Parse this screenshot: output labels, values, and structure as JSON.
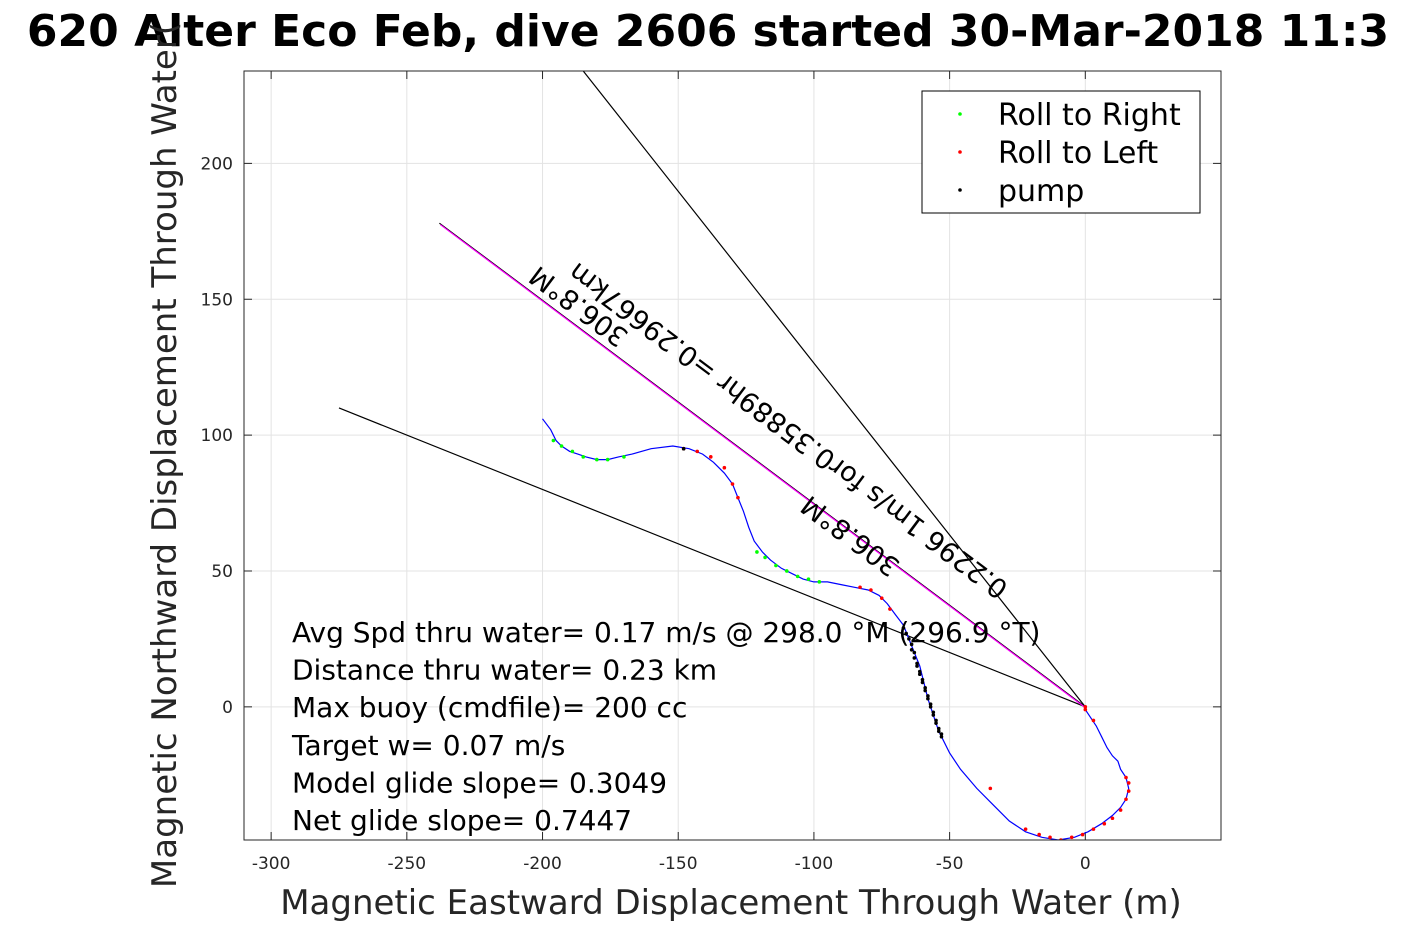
{
  "chart_data": {
    "type": "line",
    "title": "620 Alter Eco Feb, dive 2606 started 30-Mar-2018 11:3",
    "xlabel": "Magnetic Eastward Displacement Through Water (m)",
    "ylabel": "Magnetic Northward Displacement Through Water(",
    "xlim": [
      -310,
      50
    ],
    "ylim": [
      -49,
      234
    ],
    "xticks": [
      -300,
      -250,
      -200,
      -150,
      -100,
      -50,
      0
    ],
    "yticks": [
      0,
      50,
      100,
      150,
      200
    ],
    "grid": true,
    "legend_position": "top-right",
    "legend": [
      {
        "label": "Roll to Right",
        "color": "#00ff00"
      },
      {
        "label": "Roll to Left",
        "color": "#ff0000"
      },
      {
        "label": "pump",
        "color": "#000000"
      }
    ],
    "track": {
      "color": "#0000ff",
      "points": [
        [
          -200,
          106
        ],
        [
          -197,
          102
        ],
        [
          -195,
          98
        ],
        [
          -193,
          96
        ],
        [
          -190,
          94
        ],
        [
          -187,
          93
        ],
        [
          -184,
          92
        ],
        [
          -180,
          91
        ],
        [
          -176,
          91
        ],
        [
          -172,
          92
        ],
        [
          -167,
          93
        ],
        [
          -160,
          95
        ],
        [
          -152,
          96
        ],
        [
          -146,
          95
        ],
        [
          -141,
          93
        ],
        [
          -137,
          90
        ],
        [
          -133,
          86
        ],
        [
          -130,
          82
        ],
        [
          -128,
          77
        ],
        [
          -126,
          72
        ],
        [
          -124,
          66
        ],
        [
          -122,
          61
        ],
        [
          -119,
          57
        ],
        [
          -116,
          54
        ],
        [
          -112,
          51
        ],
        [
          -108,
          49
        ],
        [
          -104,
          47
        ],
        [
          -100,
          46
        ],
        [
          -95,
          46
        ],
        [
          -90,
          45
        ],
        [
          -85,
          44
        ],
        [
          -80,
          43
        ],
        [
          -76,
          41
        ],
        [
          -73,
          38
        ],
        [
          -70,
          34
        ],
        [
          -67,
          30
        ],
        [
          -65,
          25
        ],
        [
          -63,
          20
        ],
        [
          -61,
          15
        ],
        [
          -60,
          11
        ],
        [
          -59,
          7
        ],
        [
          -58,
          3
        ],
        [
          -57,
          0
        ],
        [
          -56,
          -3
        ],
        [
          -55,
          -6
        ],
        [
          -54,
          -9
        ],
        [
          -53,
          -11
        ],
        [
          -50,
          -17
        ],
        [
          -46,
          -23
        ],
        [
          -40,
          -30
        ],
        [
          -34,
          -36
        ],
        [
          -28,
          -42
        ],
        [
          -22,
          -46
        ],
        [
          -16,
          -48
        ],
        [
          -10,
          -49
        ],
        [
          -4,
          -48
        ],
        [
          1,
          -46
        ],
        [
          6,
          -43
        ],
        [
          10,
          -40
        ],
        [
          13,
          -37
        ],
        [
          15,
          -34
        ],
        [
          16,
          -30
        ],
        [
          15,
          -26
        ],
        [
          13,
          -23
        ],
        [
          12,
          -20
        ],
        [
          10,
          -18
        ],
        [
          8,
          -15
        ],
        [
          6,
          -11
        ],
        [
          4,
          -7
        ],
        [
          2,
          -4
        ],
        [
          0,
          -1
        ],
        [
          0,
          0
        ]
      ]
    },
    "roll_right_points": [
      [
        -196,
        98
      ],
      [
        -193,
        96
      ],
      [
        -189,
        94
      ],
      [
        -185,
        92
      ],
      [
        -180,
        91
      ],
      [
        -176,
        91
      ],
      [
        -170,
        92
      ],
      [
        -121,
        57
      ],
      [
        -118,
        55
      ],
      [
        -114,
        52
      ],
      [
        -110,
        50
      ],
      [
        -106,
        48
      ],
      [
        -102,
        47
      ],
      [
        -98,
        46
      ]
    ],
    "roll_left_points": [
      [
        -148,
        95
      ],
      [
        -143,
        94
      ],
      [
        -138,
        92
      ],
      [
        -133,
        88
      ],
      [
        -130,
        82
      ],
      [
        -128,
        77
      ],
      [
        -83,
        44
      ],
      [
        -79,
        43
      ],
      [
        -75,
        40
      ],
      [
        -72,
        36
      ],
      [
        -35,
        -30
      ],
      [
        -22,
        -45
      ],
      [
        -17,
        -47
      ],
      [
        -13,
        -48
      ],
      [
        -9,
        -49
      ],
      [
        -5,
        -48
      ],
      [
        -1,
        -47
      ],
      [
        3,
        -45
      ],
      [
        7,
        -43
      ],
      [
        10,
        -41
      ],
      [
        13,
        -38
      ],
      [
        15,
        -34
      ],
      [
        16,
        -31
      ],
      [
        16,
        -28
      ],
      [
        15,
        -26
      ],
      [
        0,
        -1
      ],
      [
        0,
        0
      ],
      [
        3,
        -5
      ]
    ],
    "pump_points": [
      [
        -67,
        29
      ],
      [
        -66,
        27
      ],
      [
        -65,
        25
      ],
      [
        -64,
        23
      ],
      [
        -64,
        21
      ],
      [
        -63,
        20
      ],
      [
        -63,
        18
      ],
      [
        -62,
        16
      ],
      [
        -62,
        15
      ],
      [
        -61,
        13
      ],
      [
        -61,
        12
      ],
      [
        -60,
        10
      ],
      [
        -60,
        9
      ],
      [
        -59,
        7
      ],
      [
        -59,
        6
      ],
      [
        -58,
        4
      ],
      [
        -58,
        3
      ],
      [
        -57,
        1
      ],
      [
        -57,
        0
      ],
      [
        -56,
        -2
      ],
      [
        -56,
        -3
      ],
      [
        -55,
        -5
      ],
      [
        -55,
        -6
      ],
      [
        -54,
        -8
      ],
      [
        -54,
        -9
      ],
      [
        -53,
        -10
      ],
      [
        -53,
        -11
      ],
      [
        -148,
        95
      ]
    ],
    "heading_line": {
      "color": "#ff00ff",
      "from": [
        0,
        0
      ],
      "to": [
        -238,
        178
      ],
      "label_upper": "306.8°M",
      "label_mid": "0.2296 1m/s for0.35889hr =0.29667km",
      "label_lower": "306.8°M"
    },
    "wedge_lines": [
      {
        "from": [
          0,
          0
        ],
        "to": [
          -185,
          234
        ]
      },
      {
        "from": [
          0,
          0
        ],
        "to": [
          -275,
          110
        ]
      }
    ],
    "annotations": [
      "Avg Spd thru water=  0.17 m/s @ 298.0  °M (296.9 °T)",
      "Distance thru water=  0.23 km",
      "Max buoy (cmdfile)= 200 cc",
      "Target w= 0.07 m/s",
      "Model glide slope= 0.3049",
      "Net glide slope= 0.7447"
    ]
  }
}
